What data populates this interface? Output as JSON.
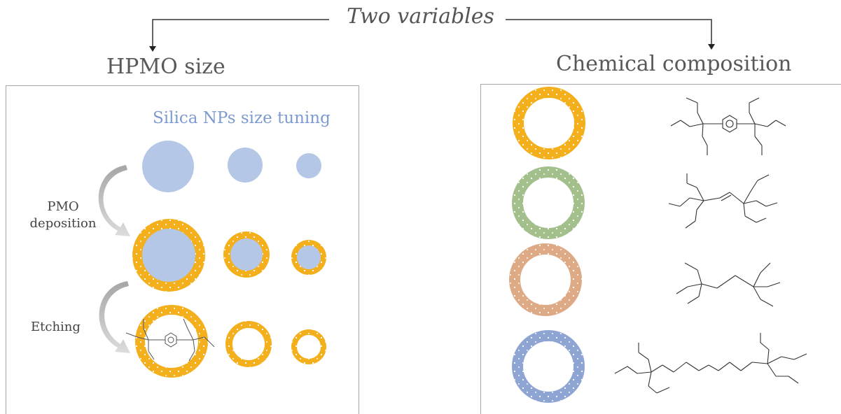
{
  "title": "Two variables",
  "left": {
    "heading": "HPMO size",
    "tuning_label": "Silica NPs size tuning",
    "steps": {
      "deposition": "PMO deposition",
      "etching": "Etching"
    }
  },
  "right": {
    "heading": "Chemical composition"
  },
  "colors": {
    "silica": "#b4c7e7",
    "orange_shell": "#f3b01c",
    "green_shell": "#a3c08c",
    "peach_shell": "#deaa86",
    "blue_shell": "#8ea4d2",
    "arrow": "#a6a6a6"
  }
}
